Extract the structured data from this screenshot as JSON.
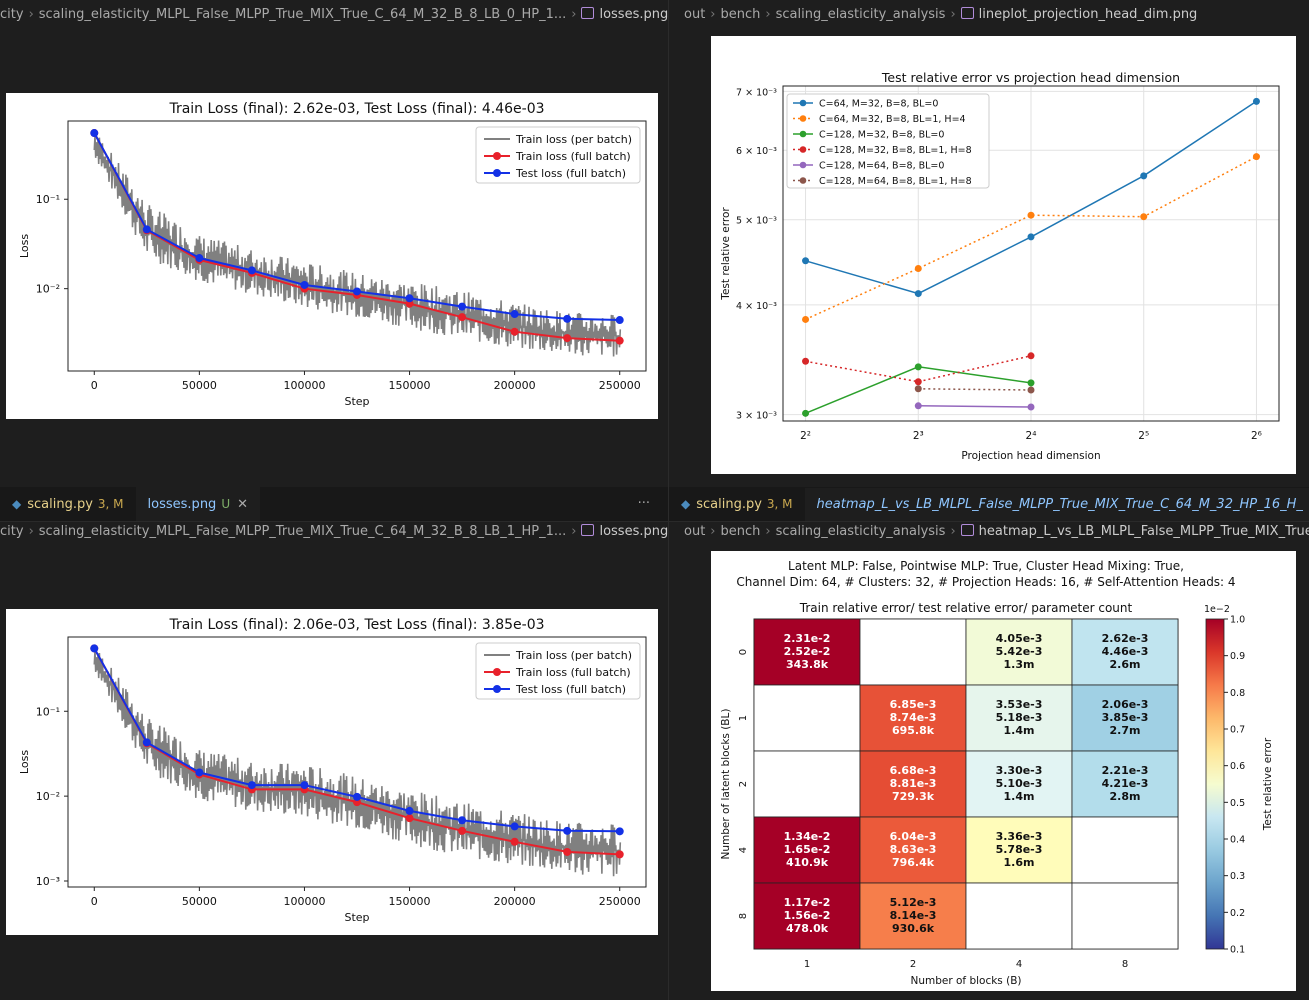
{
  "panes": {
    "top_left": {
      "breadcrumb": [
        "city",
        "scaling_elasticity_MLPL_False_MLPP_True_MIX_True_C_64_M_32_B_8_LB_0_HP_1...",
        "losses.png"
      ]
    },
    "top_right": {
      "breadcrumb": [
        "out",
        "bench",
        "scaling_elasticity_analysis",
        "lineplot_projection_head_dim.png"
      ]
    },
    "bottom_left": {
      "tabs": [
        {
          "label": "scaling.py",
          "badge": "3, M"
        },
        {
          "label": "losses.png",
          "badge": "U"
        }
      ],
      "more": "···",
      "breadcrumb": [
        "city",
        "scaling_elasticity_MLPL_False_MLPP_True_MIX_True_C_64_M_32_B_8_LB_1_HP_1...",
        "losses.png"
      ]
    },
    "bottom_right": {
      "tabs": [
        {
          "label": "scaling.py",
          "badge": "3, M"
        },
        {
          "label": "heatmap_L_vs_LB_MLPL_False_MLPP_True_MIX_True_C_64_M_32_HP_16_H_"
        }
      ],
      "breadcrumb": [
        "out",
        "bench",
        "scaling_elasticity_analysis",
        "heatmap_L_vs_LB_MLPL_False_MLPP_True_MIX_True_"
      ]
    }
  },
  "chart_data": [
    {
      "id": "loss_top",
      "type": "line",
      "title": "Train Loss (final): 2.62e-03, Test Loss (final): 4.46e-03",
      "xlabel": "Step",
      "ylabel": "Loss",
      "yscale": "log",
      "xlim": [
        -12500,
        262500
      ],
      "ylim": [
        0.0012,
        0.75
      ],
      "x_ticks": [
        0,
        50000,
        100000,
        150000,
        200000,
        250000
      ],
      "x_tick_labels": [
        "0",
        "50000",
        "100000",
        "150000",
        "200000",
        "250000"
      ],
      "y_ticks": [
        0.1,
        0.01
      ],
      "y_tick_labels": [
        "10⁻¹",
        "10⁻²"
      ],
      "legend": [
        "Train loss (per batch)",
        "Train loss (full batch)",
        "Test loss (full batch)"
      ],
      "series": [
        {
          "name": "Train loss (full batch)",
          "color": "#e8212b",
          "x": [
            0,
            25000,
            50000,
            75000,
            100000,
            125000,
            150000,
            175000,
            200000,
            225000,
            250000
          ],
          "values": [
            0.55,
            0.045,
            0.021,
            0.015,
            0.01,
            0.0085,
            0.0068,
            0.0048,
            0.0033,
            0.0028,
            0.00262
          ]
        },
        {
          "name": "Test loss (full batch)",
          "color": "#1331e6",
          "x": [
            0,
            25000,
            50000,
            75000,
            100000,
            125000,
            150000,
            175000,
            200000,
            225000,
            250000
          ],
          "values": [
            0.55,
            0.046,
            0.022,
            0.016,
            0.011,
            0.0093,
            0.0078,
            0.0063,
            0.0052,
            0.0046,
            0.00446
          ]
        }
      ],
      "per_batch_band": {
        "color": "#808080",
        "x": [
          0,
          25000,
          50000,
          75000,
          100000,
          125000,
          150000,
          175000,
          200000,
          225000,
          250000
        ],
        "low": [
          0.3,
          0.022,
          0.012,
          0.0085,
          0.006,
          0.0048,
          0.0036,
          0.0027,
          0.0021,
          0.0018,
          0.0017
        ],
        "high": [
          0.6,
          0.09,
          0.04,
          0.028,
          0.02,
          0.015,
          0.012,
          0.0095,
          0.007,
          0.0055,
          0.0052
        ]
      }
    },
    {
      "id": "loss_bottom",
      "type": "line",
      "title": "Train Loss (final): 2.06e-03, Test Loss (final): 3.85e-03",
      "xlabel": "Step",
      "ylabel": "Loss",
      "yscale": "log",
      "xlim": [
        -12500,
        262500
      ],
      "ylim": [
        0.00085,
        0.75
      ],
      "x_ticks": [
        0,
        50000,
        100000,
        150000,
        200000,
        250000
      ],
      "x_tick_labels": [
        "0",
        "50000",
        "100000",
        "150000",
        "200000",
        "250000"
      ],
      "y_ticks": [
        0.1,
        0.01,
        0.001
      ],
      "y_tick_labels": [
        "10⁻¹",
        "10⁻²",
        "10⁻³"
      ],
      "legend": [
        "Train loss (per batch)",
        "Train loss (full batch)",
        "Test loss (full batch)"
      ],
      "series": [
        {
          "name": "Train loss (full batch)",
          "color": "#e8212b",
          "x": [
            0,
            25000,
            50000,
            75000,
            100000,
            125000,
            150000,
            175000,
            200000,
            225000,
            250000
          ],
          "values": [
            0.55,
            0.042,
            0.018,
            0.012,
            0.012,
            0.0085,
            0.0055,
            0.0039,
            0.0029,
            0.0022,
            0.00206
          ]
        },
        {
          "name": "Test loss (full batch)",
          "color": "#1331e6",
          "x": [
            0,
            25000,
            50000,
            75000,
            100000,
            125000,
            150000,
            175000,
            200000,
            225000,
            250000
          ],
          "values": [
            0.55,
            0.043,
            0.019,
            0.0135,
            0.0135,
            0.0098,
            0.0067,
            0.0052,
            0.0044,
            0.0039,
            0.00385
          ]
        }
      ],
      "per_batch_band": {
        "color": "#808080",
        "x": [
          0,
          25000,
          50000,
          75000,
          100000,
          125000,
          150000,
          175000,
          200000,
          225000,
          250000
        ],
        "low": [
          0.3,
          0.02,
          0.009,
          0.0065,
          0.0055,
          0.0042,
          0.0027,
          0.0019,
          0.0015,
          0.0012,
          0.0011
        ],
        "high": [
          0.6,
          0.085,
          0.036,
          0.026,
          0.024,
          0.017,
          0.012,
          0.0085,
          0.0065,
          0.005,
          0.0048
        ]
      }
    },
    {
      "id": "projection_head",
      "type": "line",
      "title": "Test relative error vs projection head dimension",
      "xlabel": "Projection head dimension",
      "ylabel": "Test relative error",
      "yscale": "log",
      "xlim": [
        1.8,
        6.2
      ],
      "ylim": [
        0.00295,
        0.0071
      ],
      "x_ticks": [
        2,
        3,
        4,
        5,
        6
      ],
      "x_tick_labels": [
        "2²",
        "2³",
        "2⁴",
        "2⁵",
        "2⁶"
      ],
      "y_ticks": [
        0.003,
        0.004,
        0.005,
        0.006,
        0.007
      ],
      "y_tick_labels": [
        "3 × 10⁻³",
        "4 × 10⁻³",
        "5 × 10⁻³",
        "6 × 10⁻³",
        "7 × 10⁻³"
      ],
      "legend_position": "top-left",
      "series": [
        {
          "name": "C=64, M=32, B=8, BL=0",
          "color": "#1f77b4",
          "dash": false,
          "x": [
            2,
            3,
            4,
            5,
            6
          ],
          "values": [
            0.00449,
            0.00412,
            0.00478,
            0.00561,
            0.00682
          ]
        },
        {
          "name": "C=64, M=32, B=8, BL=1, H=4",
          "color": "#ff7f0e",
          "dash": true,
          "x": [
            2,
            3,
            4,
            5,
            6
          ],
          "values": [
            0.00385,
            0.0044,
            0.00506,
            0.00504,
            0.0059
          ]
        },
        {
          "name": "C=128, M=32, B=8, BL=0",
          "color": "#2ca02c",
          "dash": false,
          "x": [
            2,
            3,
            4
          ],
          "values": [
            0.00301,
            0.0034,
            0.00326
          ]
        },
        {
          "name": "C=128, M=32, B=8, BL=1, H=8",
          "color": "#d62728",
          "dash": true,
          "x": [
            2,
            3,
            4
          ],
          "values": [
            0.00345,
            0.00327,
            0.0035
          ]
        },
        {
          "name": "C=128, M=64, B=8, BL=0",
          "color": "#9467bd",
          "dash": false,
          "x": [
            3,
            4
          ],
          "values": [
            0.00307,
            0.00306
          ]
        },
        {
          "name": "C=128, M=64, B=8, BL=1, H=8",
          "color": "#8c564b",
          "dash": true,
          "x": [
            3,
            4
          ],
          "values": [
            0.00321,
            0.0032
          ]
        }
      ]
    },
    {
      "id": "heatmap",
      "type": "heatmap",
      "title_lines": [
        "Latent MLP: False, Pointwise MLP: True, Cluster Head Mixing: True,",
        "Channel Dim: 64, # Clusters: 32, # Projection Heads: 16, # Self-Attention Heads: 4"
      ],
      "subtitle": "Train relative error/ test relative error/ parameter count",
      "xlabel": "Number of blocks (B)",
      "ylabel": "Number of latent blocks (BL)",
      "x_categories": [
        "1",
        "2",
        "4",
        "8"
      ],
      "y_categories": [
        "0",
        "1",
        "2",
        "4",
        "8"
      ],
      "colorbar_label": "Test relative error",
      "colorbar_scale": "1e−2",
      "colorbar_range": [
        0.1,
        1.0
      ],
      "colorbar_ticks": [
        "1.0",
        "0.9",
        "0.8",
        "0.7",
        "0.6",
        "0.5",
        "0.4",
        "0.3",
        "0.2",
        "0.1"
      ],
      "cells": [
        [
          {
            "train": "2.31e-2",
            "test": "2.52e-2",
            "params": "343.8k",
            "v": 0.0252
          },
          null,
          {
            "train": "4.05e-3",
            "test": "5.42e-3",
            "params": "1.3m",
            "v": 0.00542
          },
          {
            "train": "2.62e-3",
            "test": "4.46e-3",
            "params": "2.6m",
            "v": 0.00446
          }
        ],
        [
          null,
          {
            "train": "6.85e-3",
            "test": "8.74e-3",
            "params": "695.8k",
            "v": 0.00874
          },
          {
            "train": "3.53e-3",
            "test": "5.18e-3",
            "params": "1.4m",
            "v": 0.00518
          },
          {
            "train": "2.06e-3",
            "test": "3.85e-3",
            "params": "2.7m",
            "v": 0.00385
          }
        ],
        [
          null,
          {
            "train": "6.68e-3",
            "test": "8.81e-3",
            "params": "729.3k",
            "v": 0.00881
          },
          {
            "train": "3.30e-3",
            "test": "5.10e-3",
            "params": "1.4m",
            "v": 0.0051
          },
          {
            "train": "2.21e-3",
            "test": "4.21e-3",
            "params": "2.8m",
            "v": 0.00421
          }
        ],
        [
          {
            "train": "1.34e-2",
            "test": "1.65e-2",
            "params": "410.9k",
            "v": 0.0165
          },
          {
            "train": "6.04e-3",
            "test": "8.63e-3",
            "params": "796.4k",
            "v": 0.00863
          },
          {
            "train": "3.36e-3",
            "test": "5.78e-3",
            "params": "1.6m",
            "v": 0.00578
          },
          null
        ],
        [
          {
            "train": "1.17e-2",
            "test": "1.56e-2",
            "params": "478.0k",
            "v": 0.0156
          },
          {
            "train": "5.12e-3",
            "test": "8.14e-3",
            "params": "930.6k",
            "v": 0.00814
          },
          null,
          null
        ]
      ]
    }
  ]
}
